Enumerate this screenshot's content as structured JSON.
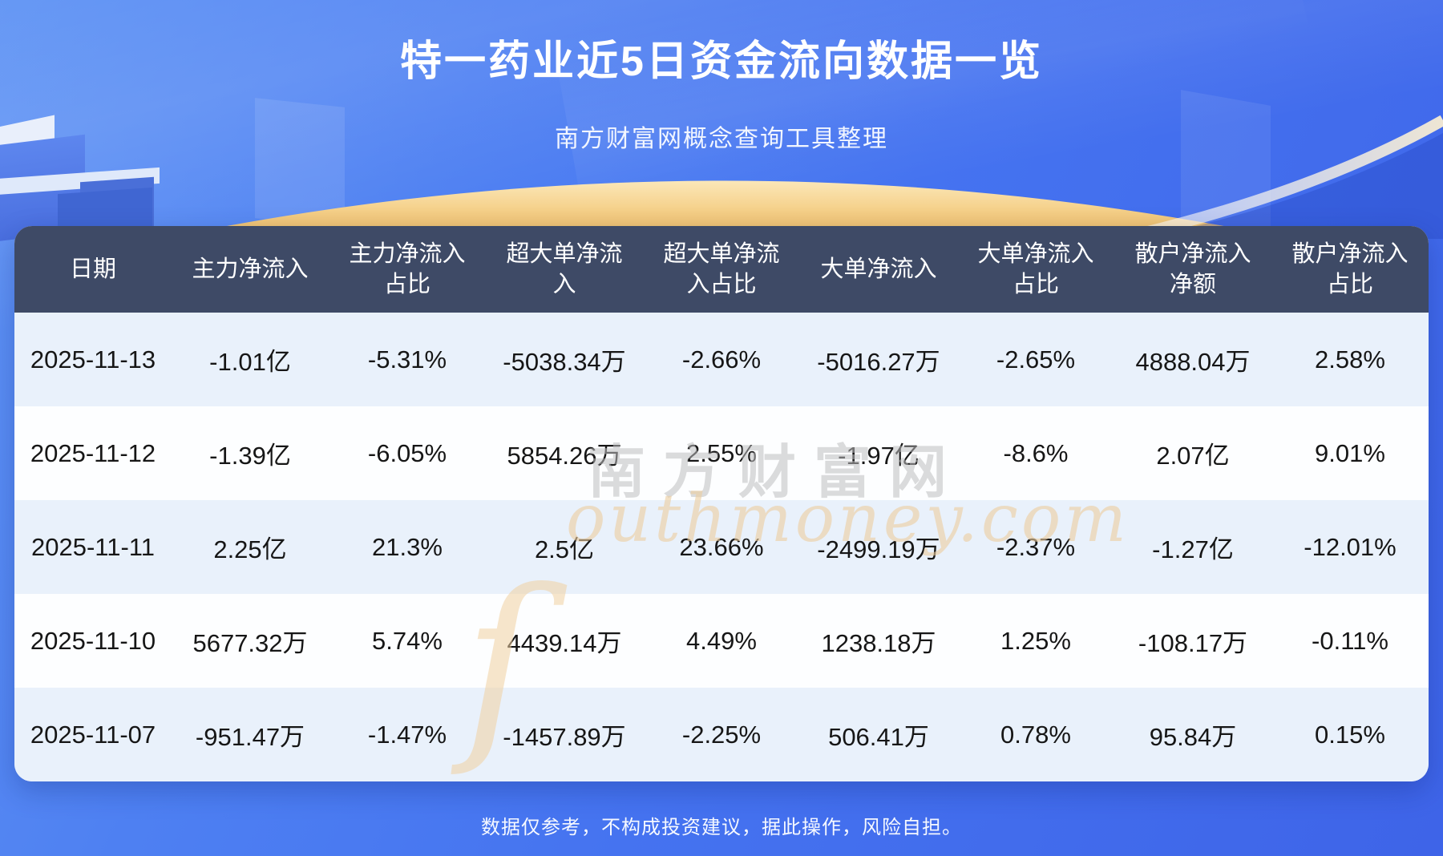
{
  "header": {
    "title": "特一药业近5日资金流向数据一览",
    "subtitle": "南方财富网概念查询工具整理"
  },
  "chart_data": {
    "type": "table",
    "title": "特一药业近5日资金流向数据一览",
    "columns": [
      "日期",
      "主力净流入",
      "主力净流入占比",
      "超大单净流入",
      "超大单净流入占比",
      "大单净流入",
      "大单净流入占比",
      "散户净流入净额",
      "散户净流入占比"
    ],
    "rows": [
      [
        "2025-11-13",
        "-1.01亿",
        "-5.31%",
        "-5038.34万",
        "-2.66%",
        "-5016.27万",
        "-2.65%",
        "4888.04万",
        "2.58%"
      ],
      [
        "2025-11-12",
        "-1.39亿",
        "-6.05%",
        "5854.26万",
        "2.55%",
        "-1.97亿",
        "-8.6%",
        "2.07亿",
        "9.01%"
      ],
      [
        "2025-11-11",
        "2.25亿",
        "21.3%",
        "2.5亿",
        "23.66%",
        "-2499.19万",
        "-2.37%",
        "-1.27亿",
        "-12.01%"
      ],
      [
        "2025-11-10",
        "5677.32万",
        "5.74%",
        "4439.14万",
        "4.49%",
        "1238.18万",
        "1.25%",
        "-108.17万",
        "-0.11%"
      ],
      [
        "2025-11-07",
        "-951.47万",
        "-1.47%",
        "-1457.89万",
        "-2.25%",
        "506.41万",
        "0.78%",
        "95.84万",
        "0.15%"
      ]
    ]
  },
  "watermark": {
    "initial": "ſ",
    "cn": "南方财富网",
    "en": "outhmoney.com"
  },
  "footer": {
    "disclaimer": "数据仅参考，不构成投资建议，据此操作，风险自担。"
  },
  "colors": {
    "header_bg": "#3e4a66",
    "row_odd": "#e9f1fb",
    "row_even": "#fdfeff",
    "gold_light": "#fbe7b8",
    "gold_dark": "#f0bd62",
    "bg_top": "#6094f4",
    "bg_bottom": "#3e64e8",
    "title_text": "#ffffff",
    "cell_text": "#161616"
  }
}
